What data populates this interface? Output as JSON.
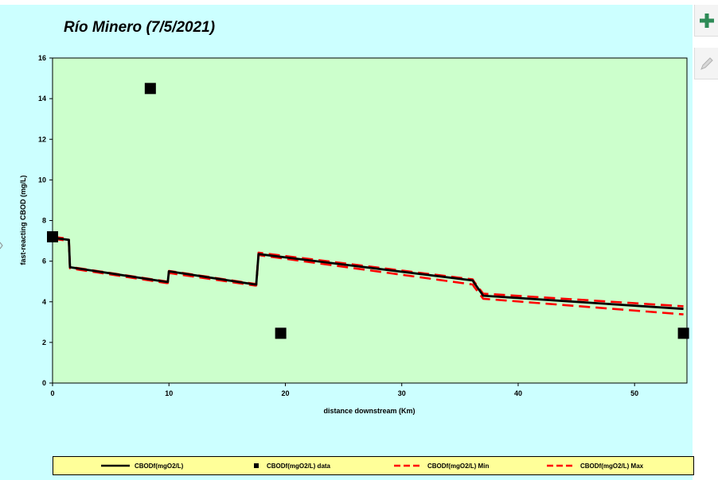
{
  "chart_data": {
    "type": "line",
    "title": "Río Minero (7/5/2021)",
    "xlabel": "distance downstream (Km)",
    "ylabel": "fast-reacting CBOD (mg/L)",
    "xlim": [
      0,
      54.5
    ],
    "ylim": [
      0,
      16
    ],
    "xticks": [
      0,
      10,
      20,
      30,
      40,
      50
    ],
    "yticks": [
      0,
      2,
      4,
      6,
      8,
      10,
      12,
      14,
      16
    ],
    "grid": false,
    "legend_position": "bottom",
    "series": [
      {
        "name": "CBODf(mgO2/L)",
        "style": "solid",
        "color": "#000000",
        "x": [
          0,
          1.4,
          1.5,
          9.8,
          9.9,
          10.0,
          17.4,
          17.5,
          17.7,
          36.1,
          36.2,
          37.0,
          54.2
        ],
        "y": [
          7.15,
          7.05,
          5.7,
          4.98,
          4.98,
          5.5,
          4.85,
          4.85,
          6.35,
          5.05,
          4.95,
          4.3,
          3.65
        ]
      },
      {
        "name": "CBODf(mgO2/L) data",
        "style": "marker",
        "color": "#000000",
        "x": [
          0,
          8.4,
          19.6,
          54.2
        ],
        "y": [
          7.2,
          14.5,
          2.45,
          2.45
        ]
      },
      {
        "name": "CBODf(mgO2/L) Min",
        "style": "dashed",
        "color": "#ff0000",
        "x": [
          0,
          1.4,
          1.5,
          9.8,
          9.9,
          10.0,
          17.4,
          17.5,
          17.7,
          36.1,
          36.2,
          37.0,
          54.2
        ],
        "y": [
          7.1,
          7.0,
          5.65,
          4.92,
          4.92,
          5.42,
          4.8,
          4.8,
          6.3,
          4.85,
          4.75,
          4.15,
          3.38
        ]
      },
      {
        "name": "CBODf(mgO2/L) Max",
        "style": "dashed",
        "color": "#ff0000",
        "x": [
          0,
          1.4,
          1.5,
          9.8,
          9.9,
          10.0,
          17.4,
          17.5,
          17.7,
          36.1,
          36.2,
          37.0,
          54.2
        ],
        "y": [
          7.2,
          7.1,
          5.72,
          5.0,
          5.0,
          5.52,
          4.88,
          4.88,
          6.42,
          5.1,
          5.0,
          4.4,
          3.78
        ]
      }
    ]
  },
  "colors": {
    "frame_background": "#ccffff",
    "plot_background": "#ccffcc",
    "legend_background": "#ffff99",
    "model_line": "#000000",
    "bound_lines": "#ff0000",
    "zoom_icon": "#2e8b57"
  },
  "toolbar": {
    "zoom_icon": "plus-icon",
    "edit_icon": "pencil-icon"
  }
}
